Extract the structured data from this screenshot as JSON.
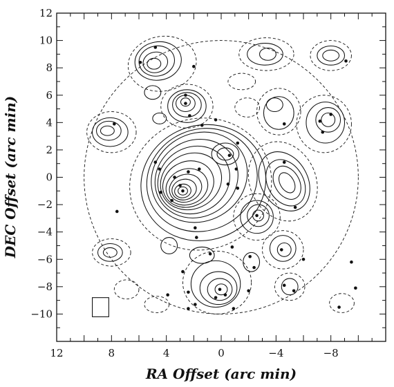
{
  "chart_data": {
    "type": "scatter",
    "xlabel": "RA Offset (arc min)",
    "ylabel": "DEC Offset (arc min)",
    "xlim": [
      12,
      -12
    ],
    "ylim": [
      -12,
      12
    ],
    "x_ticks": [
      12,
      8,
      4,
      0,
      -4,
      -8
    ],
    "x_tick_labels": [
      "12",
      "8",
      "4",
      "0",
      "−4",
      "−8"
    ],
    "y_ticks": [
      12,
      10,
      8,
      6,
      4,
      2,
      0,
      -2,
      -4,
      -6,
      -8,
      -10
    ],
    "y_tick_labels": [
      "12",
      "10",
      "8",
      "6",
      "4",
      "2",
      "0",
      "−2",
      "−4",
      "−6",
      "−8",
      "−10"
    ],
    "minor_tick_step": 1,
    "grid": false,
    "beam_box": {
      "x": [
        9.4,
        8.2
      ],
      "y": [
        -10.2,
        -8.8
      ]
    },
    "sources": [
      {
        "x": 5.9,
        "y": 8.4
      },
      {
        "x": 4.8,
        "y": 9.5
      },
      {
        "x": 2.0,
        "y": 8.1
      },
      {
        "x": 2.6,
        "y": 6.0
      },
      {
        "x": 2.6,
        "y": 5.4
      },
      {
        "x": 2.3,
        "y": 4.5
      },
      {
        "x": 1.4,
        "y": 3.8
      },
      {
        "x": 0.4,
        "y": 4.2
      },
      {
        "x": -1.2,
        "y": 2.5
      },
      {
        "x": -0.6,
        "y": 1.6
      },
      {
        "x": 1.6,
        "y": 0.6
      },
      {
        "x": 2.4,
        "y": 0.4
      },
      {
        "x": 3.4,
        "y": 0.0
      },
      {
        "x": 3.0,
        "y": -0.6
      },
      {
        "x": 2.8,
        "y": -1.0
      },
      {
        "x": 3.6,
        "y": -1.7
      },
      {
        "x": 4.4,
        "y": -1.1
      },
      {
        "x": 4.5,
        "y": 0.6
      },
      {
        "x": 4.8,
        "y": 1.1
      },
      {
        "x": -0.5,
        "y": -0.5
      },
      {
        "x": -1.2,
        "y": -0.8
      },
      {
        "x": -1.1,
        "y": 0.6
      },
      {
        "x": 1.9,
        "y": -3.7
      },
      {
        "x": 1.8,
        "y": -4.4
      },
      {
        "x": 0.8,
        "y": -5.6
      },
      {
        "x": -0.8,
        "y": -5.1
      },
      {
        "x": -2.6,
        "y": -2.8
      },
      {
        "x": -4.6,
        "y": 1.1
      },
      {
        "x": -5.4,
        "y": -2.2
      },
      {
        "x": -4.4,
        "y": -5.3
      },
      {
        "x": -2.1,
        "y": -5.8
      },
      {
        "x": -2.4,
        "y": -6.6
      },
      {
        "x": 0.1,
        "y": -8.2
      },
      {
        "x": -0.3,
        "y": -8.6
      },
      {
        "x": 2.4,
        "y": -8.4
      },
      {
        "x": 1.9,
        "y": -9.3
      },
      {
        "x": 0.4,
        "y": -8.8
      },
      {
        "x": 2.8,
        "y": -6.9
      },
      {
        "x": -2.0,
        "y": -8.3
      },
      {
        "x": -4.6,
        "y": -7.9
      },
      {
        "x": -5.3,
        "y": -8.3
      },
      {
        "x": -6.0,
        "y": -6.0
      },
      {
        "x": -4.6,
        "y": 3.9
      },
      {
        "x": -7.2,
        "y": 4.1
      },
      {
        "x": -7.4,
        "y": 3.3
      },
      {
        "x": -8.0,
        "y": 4.6
      },
      {
        "x": -9.1,
        "y": 8.5
      },
      {
        "x": 7.8,
        "y": 3.9
      },
      {
        "x": 7.6,
        "y": -2.5
      },
      {
        "x": 3.9,
        "y": -8.6
      },
      {
        "x": 2.4,
        "y": -9.6
      },
      {
        "x": -0.9,
        "y": -9.6
      },
      {
        "x": -9.5,
        "y": -6.2
      },
      {
        "x": -9.8,
        "y": -8.1
      },
      {
        "x": -8.6,
        "y": -9.5
      }
    ],
    "contours": {
      "solid": [
        {
          "cx": 2.8,
          "cy": -1.0,
          "rx": 0.35,
          "ry": 0.3,
          "rot": 0
        },
        {
          "cx": 2.8,
          "cy": -1.0,
          "rx": 0.6,
          "ry": 0.5,
          "rot": 10
        },
        {
          "cx": 2.7,
          "cy": -0.9,
          "rx": 0.9,
          "ry": 0.75,
          "rot": 15
        },
        {
          "cx": 2.6,
          "cy": -0.8,
          "rx": 1.2,
          "ry": 1.0,
          "rot": 20
        },
        {
          "cx": 2.5,
          "cy": -0.7,
          "rx": 1.55,
          "ry": 1.3,
          "rot": 20
        },
        {
          "cx": 2.4,
          "cy": -0.5,
          "rx": 1.9,
          "ry": 1.65,
          "rot": 25
        },
        {
          "cx": 2.2,
          "cy": -0.3,
          "rx": 2.3,
          "ry": 2.0,
          "rot": 30
        },
        {
          "cx": 2.0,
          "cy": -0.2,
          "rx": 2.7,
          "ry": 2.4,
          "rot": 30
        },
        {
          "cx": 1.8,
          "cy": -0.1,
          "rx": 3.1,
          "ry": 2.8,
          "rot": 30
        },
        {
          "cx": 1.6,
          "cy": 0.0,
          "rx": 3.6,
          "ry": 3.2,
          "rot": 30
        },
        {
          "cx": 1.4,
          "cy": -0.2,
          "rx": 4.1,
          "ry": 3.7,
          "rot": 25
        },
        {
          "cx": 1.3,
          "cy": -0.4,
          "rx": 4.6,
          "ry": 4.2,
          "rot": 20
        },
        {
          "cx": 4.9,
          "cy": 8.3,
          "rx": 0.5,
          "ry": 0.4,
          "rot": 0
        },
        {
          "cx": 4.8,
          "cy": 8.4,
          "rx": 0.9,
          "ry": 0.75,
          "rot": 10
        },
        {
          "cx": 4.7,
          "cy": 8.5,
          "rx": 1.3,
          "ry": 1.1,
          "rot": 10
        },
        {
          "cx": 4.6,
          "cy": 8.5,
          "rx": 1.7,
          "ry": 1.4,
          "rot": 10
        },
        {
          "cx": 2.6,
          "cy": 5.5,
          "rx": 0.35,
          "ry": 0.3,
          "rot": 0
        },
        {
          "cx": 2.6,
          "cy": 5.4,
          "rx": 0.7,
          "ry": 0.6,
          "rot": 0
        },
        {
          "cx": 2.5,
          "cy": 5.3,
          "rx": 1.05,
          "ry": 0.9,
          "rot": 0
        },
        {
          "cx": 2.5,
          "cy": 5.2,
          "rx": 1.4,
          "ry": 1.2,
          "rot": 0
        },
        {
          "cx": 8.3,
          "cy": 3.4,
          "rx": 0.5,
          "ry": 0.35,
          "rot": 0
        },
        {
          "cx": 8.2,
          "cy": 3.4,
          "rx": 0.9,
          "ry": 0.7,
          "rot": 0
        },
        {
          "cx": 8.1,
          "cy": 3.3,
          "rx": 1.3,
          "ry": 1.05,
          "rot": 0
        },
        {
          "cx": 5.0,
          "cy": 6.2,
          "rx": 0.6,
          "ry": 0.5,
          "rot": 0
        },
        {
          "cx": -0.3,
          "cy": 1.7,
          "rx": 0.6,
          "ry": 0.45,
          "rot": 0
        },
        {
          "cx": -0.3,
          "cy": 1.7,
          "rx": 1.0,
          "ry": 0.8,
          "rot": 0
        },
        {
          "cx": -4.8,
          "cy": -0.4,
          "rx": 0.5,
          "ry": 0.8,
          "rot": 30
        },
        {
          "cx": -4.8,
          "cy": -0.4,
          "rx": 0.9,
          "ry": 1.3,
          "rot": 30
        },
        {
          "cx": -4.7,
          "cy": -0.4,
          "rx": 1.3,
          "ry": 1.8,
          "rot": 30
        },
        {
          "cx": -4.6,
          "cy": -0.3,
          "rx": 1.7,
          "ry": 2.3,
          "rot": 30
        },
        {
          "cx": -2.7,
          "cy": -2.8,
          "rx": 0.4,
          "ry": 0.4,
          "rot": 0
        },
        {
          "cx": -2.7,
          "cy": -2.8,
          "rx": 0.8,
          "ry": 0.8,
          "rot": 0
        },
        {
          "cx": -2.6,
          "cy": -2.9,
          "rx": 1.2,
          "ry": 1.2,
          "rot": 0
        },
        {
          "cx": -3.9,
          "cy": 5.3,
          "rx": 0.6,
          "ry": 0.5,
          "rot": 0
        },
        {
          "cx": -4.2,
          "cy": 4.7,
          "rx": 1.1,
          "ry": 1.2,
          "rot": 0
        },
        {
          "cx": -7.8,
          "cy": 4.2,
          "rx": 0.5,
          "ry": 0.5,
          "rot": 0
        },
        {
          "cx": -7.8,
          "cy": 4.2,
          "rx": 0.9,
          "ry": 0.9,
          "rot": 0
        },
        {
          "cx": -7.6,
          "cy": 4.0,
          "rx": 1.4,
          "ry": 1.5,
          "rot": 0
        },
        {
          "cx": -8.0,
          "cy": 8.9,
          "rx": 0.6,
          "ry": 0.4,
          "rot": 0
        },
        {
          "cx": -8.0,
          "cy": 8.9,
          "rx": 1.0,
          "ry": 0.7,
          "rot": 0
        },
        {
          "cx": -3.4,
          "cy": 9.0,
          "rx": 0.6,
          "ry": 0.45,
          "rot": 0
        },
        {
          "cx": -3.2,
          "cy": 9.0,
          "rx": 1.3,
          "ry": 0.8,
          "rot": 0
        },
        {
          "cx": 0.0,
          "cy": -8.2,
          "rx": 0.45,
          "ry": 0.4,
          "rot": 0
        },
        {
          "cx": 0.1,
          "cy": -8.2,
          "rx": 0.9,
          "ry": 0.8,
          "rot": 0
        },
        {
          "cx": 0.2,
          "cy": -8.1,
          "rx": 1.35,
          "ry": 1.2,
          "rot": 0
        },
        {
          "cx": 0.4,
          "cy": -7.8,
          "rx": 1.8,
          "ry": 1.7,
          "rot": 0
        },
        {
          "cx": 8.1,
          "cy": -5.5,
          "rx": 0.5,
          "ry": 0.35,
          "rot": 0
        },
        {
          "cx": 8.1,
          "cy": -5.5,
          "rx": 0.9,
          "ry": 0.65,
          "rot": 0
        },
        {
          "cx": -4.6,
          "cy": -5.3,
          "rx": 0.5,
          "ry": 0.5,
          "rot": 0
        },
        {
          "cx": -4.5,
          "cy": -5.2,
          "rx": 0.95,
          "ry": 0.95,
          "rot": 0
        },
        {
          "cx": -2.2,
          "cy": -6.2,
          "rx": 0.6,
          "ry": 0.7,
          "rot": 0
        },
        {
          "cx": 3.8,
          "cy": -5.0,
          "rx": 0.6,
          "ry": 0.6,
          "rot": 0
        },
        {
          "cx": 1.4,
          "cy": -5.7,
          "rx": 0.9,
          "ry": 0.6,
          "rot": 0
        },
        {
          "cx": -5.0,
          "cy": -8.0,
          "rx": 0.6,
          "ry": 0.6,
          "rot": 0
        },
        {
          "cx": 4.5,
          "cy": 4.3,
          "rx": 0.5,
          "ry": 0.4,
          "rot": 0
        }
      ],
      "dashed": [
        {
          "cx": 1.5,
          "cy": -0.5,
          "rx": 5.2,
          "ry": 4.8,
          "rot": 15
        },
        {
          "cx": 4.3,
          "cy": 8.3,
          "rx": 2.5,
          "ry": 2.0,
          "rot": 10
        },
        {
          "cx": 2.5,
          "cy": 5.2,
          "rx": 1.9,
          "ry": 1.6,
          "rot": 0
        },
        {
          "cx": 8.0,
          "cy": 3.3,
          "rx": 1.8,
          "ry": 1.5,
          "rot": 0
        },
        {
          "cx": -4.5,
          "cy": -0.3,
          "rx": 2.4,
          "ry": 3.0,
          "rot": 25
        },
        {
          "cx": -7.5,
          "cy": 3.9,
          "rx": 2.0,
          "ry": 2.1,
          "rot": 0
        },
        {
          "cx": -8.0,
          "cy": 8.9,
          "rx": 1.5,
          "ry": 1.1,
          "rot": 0
        },
        {
          "cx": -3.3,
          "cy": 9.0,
          "rx": 2.0,
          "ry": 1.2,
          "rot": 0
        },
        {
          "cx": 0.3,
          "cy": -7.7,
          "rx": 2.5,
          "ry": 2.3,
          "rot": 0
        },
        {
          "cx": -2.6,
          "cy": -2.9,
          "rx": 1.7,
          "ry": 1.7,
          "rot": 0
        },
        {
          "cx": -4.2,
          "cy": 4.8,
          "rx": 1.6,
          "ry": 1.7,
          "rot": 0
        },
        {
          "cx": 8.0,
          "cy": -5.5,
          "rx": 1.4,
          "ry": 1.0,
          "rot": 0
        },
        {
          "cx": -4.5,
          "cy": -5.3,
          "rx": 1.5,
          "ry": 1.4,
          "rot": 0
        },
        {
          "cx": -1.9,
          "cy": 5.1,
          "rx": 0.9,
          "ry": 0.7,
          "rot": 0
        },
        {
          "cx": -5.0,
          "cy": -8.0,
          "rx": 1.1,
          "ry": 1.0,
          "rot": 0
        },
        {
          "cx": 4.7,
          "cy": -9.3,
          "rx": 0.9,
          "ry": 0.6,
          "rot": 0
        },
        {
          "cx": -8.8,
          "cy": -9.2,
          "rx": 0.9,
          "ry": 0.7,
          "rot": 0
        },
        {
          "cx": 6.9,
          "cy": -8.2,
          "rx": 0.9,
          "ry": 0.7,
          "rot": 0
        },
        {
          "cx": -1.5,
          "cy": 7.0,
          "rx": 1.0,
          "ry": 0.6,
          "rot": 0
        },
        {
          "cx": 0.0,
          "cy": 0.0,
          "rx": 10.0,
          "ry": 10.0,
          "rot": 0
        }
      ]
    }
  }
}
